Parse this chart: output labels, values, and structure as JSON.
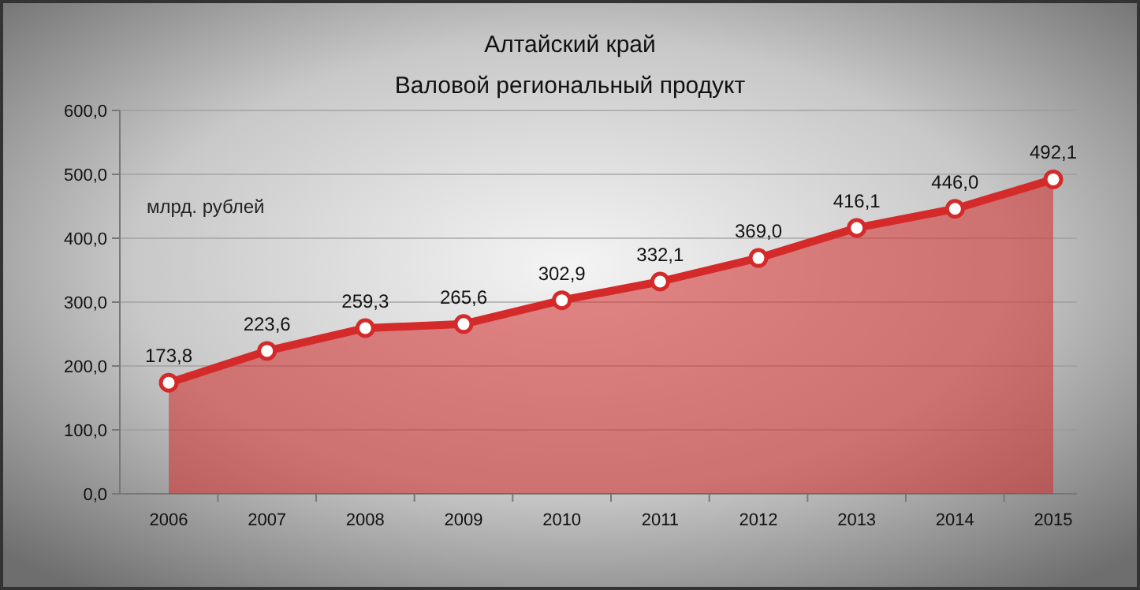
{
  "chart_data": {
    "type": "area",
    "title": "Алтайский край",
    "subtitle": "Валовой региональный продукт",
    "categories": [
      "2006",
      "2007",
      "2008",
      "2009",
      "2010",
      "2011",
      "2012",
      "2013",
      "2014",
      "2015"
    ],
    "series": [
      {
        "color": "#d42a2a",
        "values": [
          173.8,
          223.6,
          259.3,
          265.6,
          302.9,
          332.1,
          369.0,
          416.1,
          446.0,
          492.1
        ],
        "value_labels": [
          "173,8",
          "223,6",
          "259,3",
          "265,6",
          "302,9",
          "332,1",
          "369,0",
          "416,1",
          "446,0",
          "492,1"
        ]
      }
    ],
    "ylim": [
      0,
      600
    ],
    "yticks": [
      {
        "value": 0,
        "label": "0,0"
      },
      {
        "value": 100,
        "label": "100,0"
      },
      {
        "value": 200,
        "label": "200,0"
      },
      {
        "value": 300,
        "label": "300,0"
      },
      {
        "value": 400,
        "label": "400,0"
      },
      {
        "value": 500,
        "label": "500,0"
      },
      {
        "value": 600,
        "label": "600,0"
      }
    ],
    "annotations": [
      "млрд. рублей"
    ],
    "grid": "y",
    "marker": "circle",
    "line_style": "solid"
  }
}
